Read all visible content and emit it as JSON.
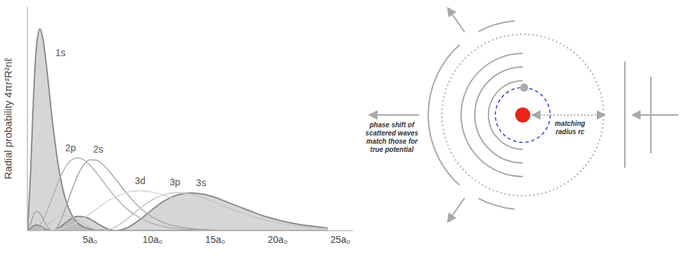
{
  "chart_data": {
    "type": "line",
    "y_label": "Radial probability 4πr²R²nℓ",
    "tick_labels": "x",
    "grid": false,
    "x": [
      0,
      0.25,
      0.5,
      0.75,
      1,
      1.25,
      1.5,
      2,
      2.5,
      3,
      3.5,
      4,
      4.5,
      5,
      5.5,
      6,
      7,
      8,
      9,
      10,
      11,
      12,
      13,
      14,
      15,
      16,
      17,
      18,
      19,
      20,
      21,
      22,
      23,
      24
    ],
    "xlim": [
      0,
      26
    ],
    "xticks": [
      {
        "value": 5,
        "label": "5a₀"
      },
      {
        "value": 10,
        "label": "10a₀"
      },
      {
        "value": 15,
        "label": "15a₀"
      },
      {
        "value": 20,
        "label": "20a₀"
      },
      {
        "value": 25,
        "label": "25a₀"
      }
    ],
    "ylim": [
      0,
      0.6
    ],
    "yticks": [],
    "series": [
      {
        "name": "1s",
        "type": "area",
        "color": "#8a8a8a",
        "values": [
          0,
          0.152,
          0.368,
          0.502,
          0.541,
          0.513,
          0.448,
          0.293,
          0.168,
          0.089,
          0.045,
          0.021,
          0.01,
          0.005,
          0.002,
          0.001,
          0,
          0,
          0,
          0,
          0,
          0,
          0,
          0,
          0,
          0,
          0,
          0,
          0,
          0,
          0,
          0,
          0,
          0
        ]
      },
      {
        "name": "2p",
        "type": "line",
        "color": "#b0b0b0",
        "values": [
          0,
          0,
          0.002,
          0.006,
          0.015,
          0.029,
          0.047,
          0.09,
          0.134,
          0.168,
          0.189,
          0.195,
          0.19,
          0.175,
          0.156,
          0.134,
          0.091,
          0.057,
          0.034,
          0.019,
          0.01,
          0.005,
          0.003,
          0.001,
          0.001,
          0,
          0,
          0,
          0,
          0,
          0,
          0,
          0,
          0
        ]
      },
      {
        "name": "2s",
        "type": "line",
        "color": "#a4a4a4",
        "values": [
          0,
          0.019,
          0.043,
          0.052,
          0.046,
          0.032,
          0.016,
          0,
          0.016,
          0.056,
          0.104,
          0.147,
          0.176,
          0.19,
          0.189,
          0.178,
          0.14,
          0.097,
          0.061,
          0.036,
          0.02,
          0.011,
          0.006,
          0.003,
          0.001,
          0,
          0,
          0,
          0,
          0,
          0,
          0,
          0,
          0
        ]
      },
      {
        "name": "3d",
        "type": "line",
        "color": "#d2d2d2",
        "values": [
          0,
          0,
          0,
          0,
          0,
          0,
          0,
          0.001,
          0.004,
          0.008,
          0.015,
          0.023,
          0.034,
          0.045,
          0.057,
          0.07,
          0.09,
          0.103,
          0.107,
          0.103,
          0.094,
          0.081,
          0.068,
          0.054,
          0.042,
          0.032,
          0.024,
          0.017,
          0.012,
          0.008,
          0.006,
          0.004,
          0.003,
          0.002
        ]
      },
      {
        "name": "3p",
        "type": "line",
        "color": "#c4c4c4",
        "values": [
          0,
          0,
          0.001,
          0.002,
          0.005,
          0.01,
          0.015,
          0.027,
          0.037,
          0.04,
          0.037,
          0.029,
          0.019,
          0.009,
          0.002,
          0,
          0.009,
          0.032,
          0.06,
          0.083,
          0.097,
          0.102,
          0.098,
          0.088,
          0.076,
          0.062,
          0.049,
          0.038,
          0.028,
          0.021,
          0.015,
          0.01,
          0.007,
          0.005
        ]
      },
      {
        "name": "3s",
        "type": "area",
        "color": "#8a8a8a",
        "values": [
          0,
          0.006,
          0.013,
          0.015,
          0.013,
          0.008,
          0.003,
          0,
          0.007,
          0.02,
          0.032,
          0.038,
          0.037,
          0.031,
          0.021,
          0.011,
          0,
          0.008,
          0.03,
          0.057,
          0.081,
          0.096,
          0.101,
          0.098,
          0.089,
          0.076,
          0.063,
          0.05,
          0.038,
          0.029,
          0.021,
          0.015,
          0.011,
          0.007
        ]
      }
    ]
  },
  "diagram": {
    "phase_label": "phase shift of scattered waves match those for true potential",
    "radius_label": "matching radius rc"
  }
}
